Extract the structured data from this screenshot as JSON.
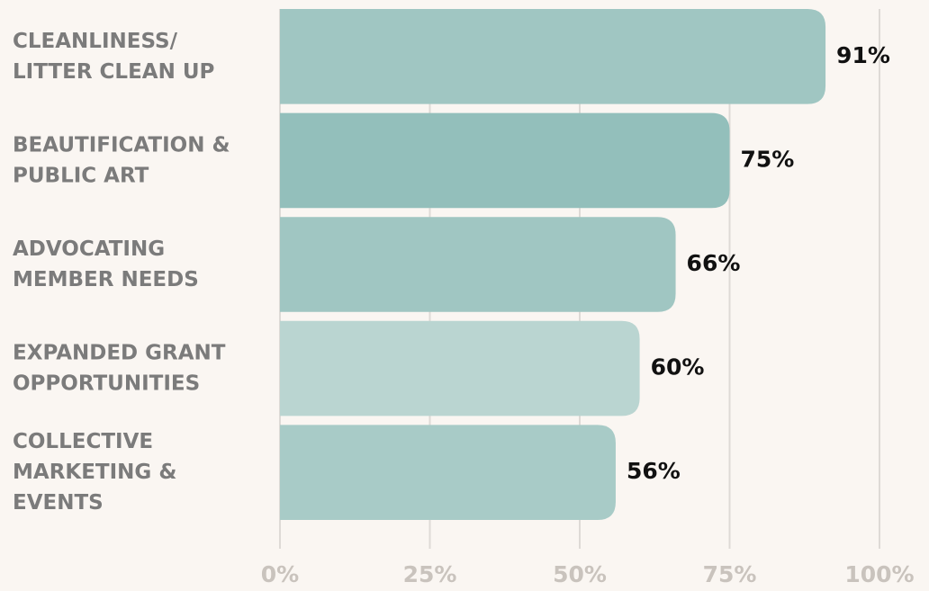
{
  "chart_data": {
    "type": "bar",
    "orientation": "horizontal",
    "categories": [
      "CLEANLINESS/\nLITTER CLEAN UP",
      "BEAUTIFICATION &\nPUBLIC ART",
      "ADVOCATING\nMEMBER NEEDS",
      "EXPANDED GRANT\nOPPORTUNITIES",
      "COLLECTIVE\nMARKETING &\nEVENTS"
    ],
    "values": [
      91,
      75,
      66,
      60,
      56
    ],
    "value_labels": [
      "91%",
      "75%",
      "66%",
      "60%",
      "56%"
    ],
    "colors": [
      "#a0c6c2",
      "#93bfbb",
      "#a0c6c2",
      "#bad5d1",
      "#a8cbc7"
    ],
    "xlim": [
      0,
      100
    ],
    "xticks": [
      {
        "value": 0,
        "label": "0%"
      },
      {
        "value": 25,
        "label": "25%"
      },
      {
        "value": 50,
        "label": "50%"
      },
      {
        "value": 75,
        "label": "75%"
      },
      {
        "value": 100,
        "label": "100%"
      }
    ],
    "grid": true
  }
}
